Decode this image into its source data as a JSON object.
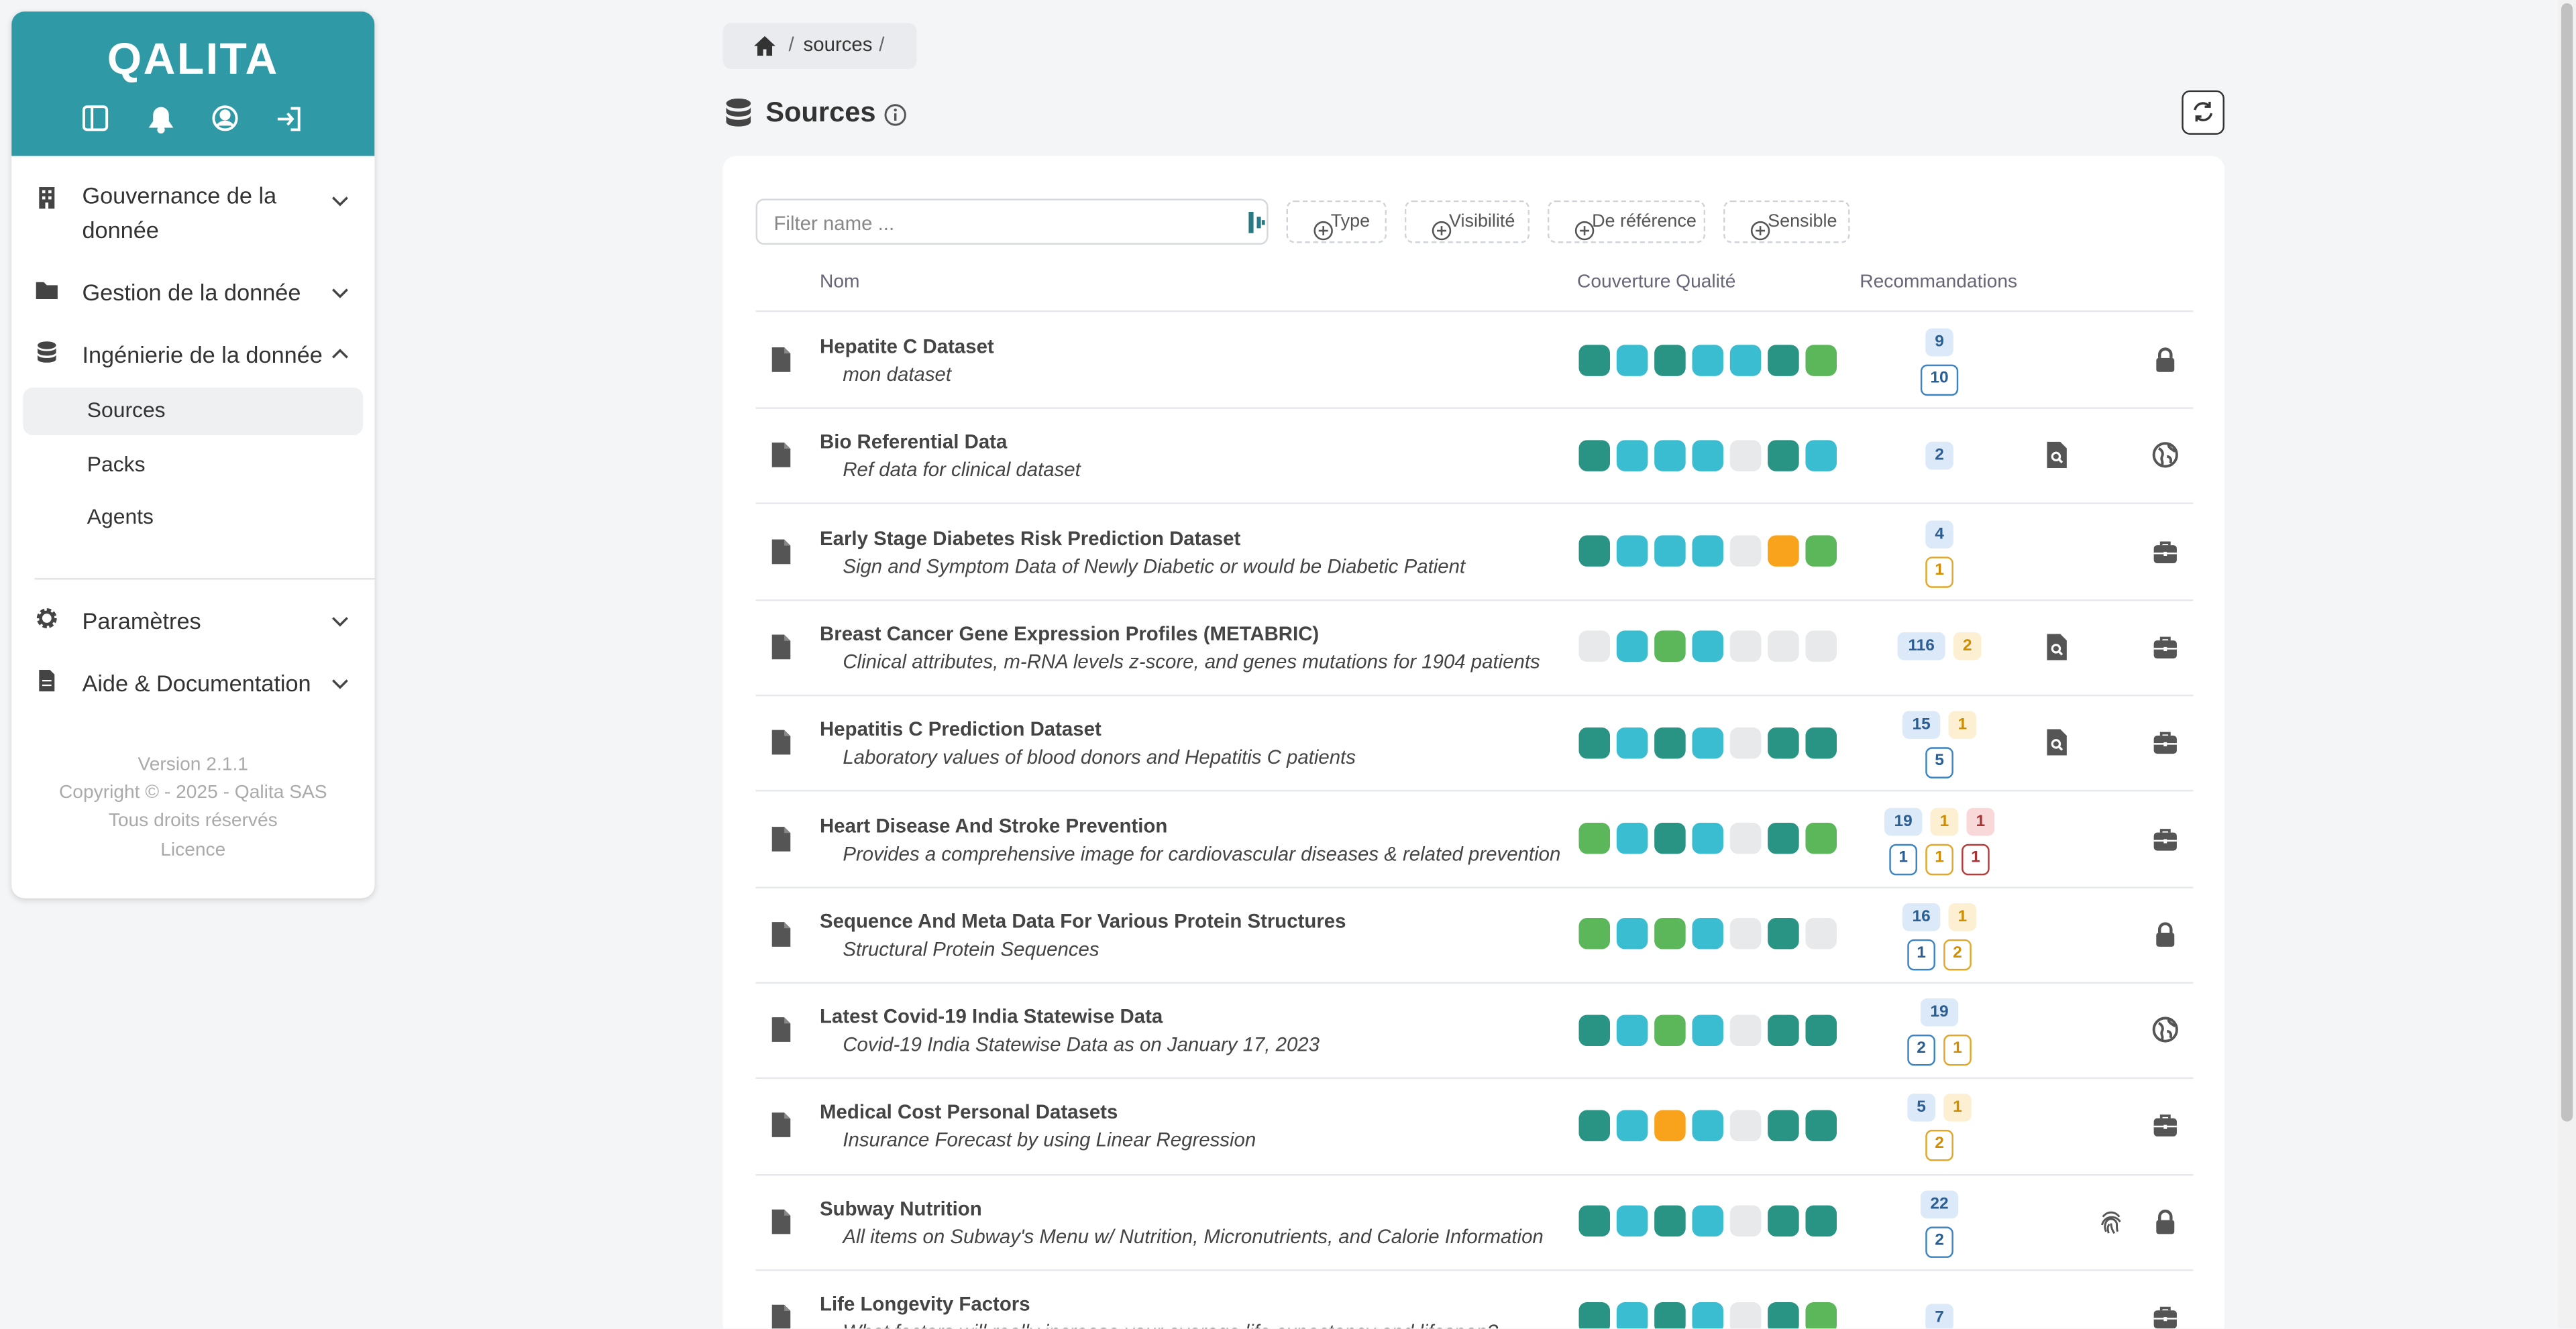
{
  "sidebar": {
    "logo": "QALITA",
    "menu": [
      {
        "label": "Gouvernance de la donnée",
        "icon": "building"
      },
      {
        "label": "Gestion de la donnée",
        "icon": "folder"
      },
      {
        "label": "Ingénierie de la donnée",
        "icon": "database"
      },
      {
        "label": "Paramètres",
        "icon": "gear"
      },
      {
        "label": "Aide & Documentation",
        "icon": "doc"
      }
    ],
    "submenu": [
      "Sources",
      "Packs",
      "Agents"
    ],
    "footer": [
      "Version 2.1.1",
      "Copyright © - 2025 - Qalita SAS",
      "Tous droits réservés",
      "Licence"
    ]
  },
  "breadcrumb": [
    "sources"
  ],
  "title": "Sources",
  "filter_placeholder": "Filter name ...",
  "filters": [
    "Type",
    "Visibilité",
    "De référence",
    "Sensible"
  ],
  "columns": [
    "Nom",
    "Couverture Qualité",
    "Recommandations"
  ],
  "rows": [
    {
      "name": "Hepatite C Dataset",
      "description": "mon dataset",
      "coverage": [
        "teal",
        "cyan",
        "teal",
        "cyan",
        "cyan",
        "teal",
        "green"
      ],
      "badges": {
        "top": [
          {
            "value": 9,
            "color": "blue"
          }
        ],
        "bottom": [
          {
            "value": 10,
            "color": "blue"
          }
        ]
      },
      "icons": [
        "lock"
      ]
    },
    {
      "name": "Bio Referential Data",
      "description": "Ref data for clinical dataset",
      "coverage": [
        "teal",
        "cyan",
        "cyan",
        "cyan",
        "gray",
        "teal",
        "cyan"
      ],
      "badges": {
        "top": [
          {
            "value": 2,
            "color": "blue"
          }
        ],
        "bottom": []
      },
      "icons": [
        "docsearch",
        "globe"
      ]
    },
    {
      "name": "Early Stage Diabetes Risk Prediction Dataset",
      "description": "Sign and Symptom Data of Newly Diabetic or would be Diabetic Patient",
      "coverage": [
        "teal",
        "cyan",
        "cyan",
        "cyan",
        "gray",
        "orange",
        "green"
      ],
      "badges": {
        "top": [
          {
            "value": 4,
            "color": "blue"
          }
        ],
        "bottom": [
          {
            "value": 1,
            "color": "yellow"
          }
        ]
      },
      "icons": [
        "briefcase"
      ]
    },
    {
      "name": "Breast Cancer Gene Expression Profiles (METABRIC)",
      "description": "Clinical attributes, m-RNA levels z-score, and genes mutations for 1904 patients",
      "coverage": [
        "gray",
        "cyan",
        "green",
        "cyan",
        "gray",
        "gray",
        "gray"
      ],
      "badges": {
        "top": [
          {
            "value": 116,
            "color": "blue"
          },
          {
            "value": 2,
            "color": "yellow"
          }
        ],
        "bottom": []
      },
      "icons": [
        "docsearch",
        "briefcase"
      ]
    },
    {
      "name": "Hepatitis C Prediction Dataset",
      "description": "Laboratory values of blood donors and Hepatitis C patients",
      "coverage": [
        "teal",
        "cyan",
        "teal",
        "cyan",
        "gray",
        "teal",
        "teal"
      ],
      "badges": {
        "top": [
          {
            "value": 15,
            "color": "blue"
          },
          {
            "value": 1,
            "color": "yellow"
          }
        ],
        "bottom": [
          {
            "value": 5,
            "color": "blue"
          }
        ]
      },
      "icons": [
        "docsearch",
        "briefcase"
      ]
    },
    {
      "name": "Heart Disease And Stroke Prevention",
      "description": "Provides a comprehensive image for cardiovascular diseases & related prevention",
      "coverage": [
        "green",
        "cyan",
        "teal",
        "cyan",
        "gray",
        "teal",
        "green"
      ],
      "badges": {
        "top": [
          {
            "value": 19,
            "color": "blue"
          },
          {
            "value": 1,
            "color": "yellow"
          },
          {
            "value": 1,
            "color": "red"
          }
        ],
        "bottom": [
          {
            "value": 1,
            "color": "blue"
          },
          {
            "value": 1,
            "color": "yellow"
          },
          {
            "value": 1,
            "color": "red"
          }
        ]
      },
      "icons": [
        "briefcase"
      ]
    },
    {
      "name": "Sequence And Meta Data For Various Protein Structures",
      "description": "Structural Protein Sequences",
      "coverage": [
        "green",
        "cyan",
        "green",
        "cyan",
        "gray",
        "teal",
        "gray"
      ],
      "badges": {
        "top": [
          {
            "value": 16,
            "color": "blue"
          },
          {
            "value": 1,
            "color": "yellow"
          }
        ],
        "bottom": [
          {
            "value": 1,
            "color": "blue"
          },
          {
            "value": 2,
            "color": "yellow"
          }
        ]
      },
      "icons": [
        "lock"
      ]
    },
    {
      "name": "Latest Covid-19 India Statewise Data",
      "description": "Covid-19 India Statewise Data as on January 17, 2023",
      "coverage": [
        "teal",
        "cyan",
        "green",
        "cyan",
        "gray",
        "teal",
        "teal"
      ],
      "badges": {
        "top": [
          {
            "value": 19,
            "color": "blue"
          }
        ],
        "bottom": [
          {
            "value": 2,
            "color": "blue"
          },
          {
            "value": 1,
            "color": "yellow"
          }
        ]
      },
      "icons": [
        "globe"
      ]
    },
    {
      "name": "Medical Cost Personal Datasets",
      "description": "Insurance Forecast by using Linear Regression",
      "coverage": [
        "teal",
        "cyan",
        "orange",
        "cyan",
        "gray",
        "teal",
        "teal"
      ],
      "badges": {
        "top": [
          {
            "value": 5,
            "color": "blue"
          },
          {
            "value": 1,
            "color": "yellow"
          }
        ],
        "bottom": [
          {
            "value": 2,
            "color": "yellow"
          }
        ]
      },
      "icons": [
        "briefcase"
      ]
    },
    {
      "name": "Subway Nutrition",
      "description": "All items on Subway's Menu w/ Nutrition, Micronutrients, and Calorie Information",
      "coverage": [
        "teal",
        "cyan",
        "teal",
        "cyan",
        "gray",
        "teal",
        "teal"
      ],
      "badges": {
        "top": [
          {
            "value": 22,
            "color": "blue"
          }
        ],
        "bottom": [
          {
            "value": 2,
            "color": "blue"
          }
        ]
      },
      "icons": [
        "fingerprint",
        "lock"
      ]
    },
    {
      "name": "Life Longevity Factors",
      "description": "What factors will really increase your average life expectancy and lifespan?",
      "coverage": [
        "teal",
        "cyan",
        "teal",
        "cyan",
        "gray",
        "teal",
        "green"
      ],
      "badges": {
        "top": [
          {
            "value": 7,
            "color": "blue"
          }
        ],
        "bottom": []
      },
      "icons": [
        "briefcase"
      ]
    }
  ]
}
